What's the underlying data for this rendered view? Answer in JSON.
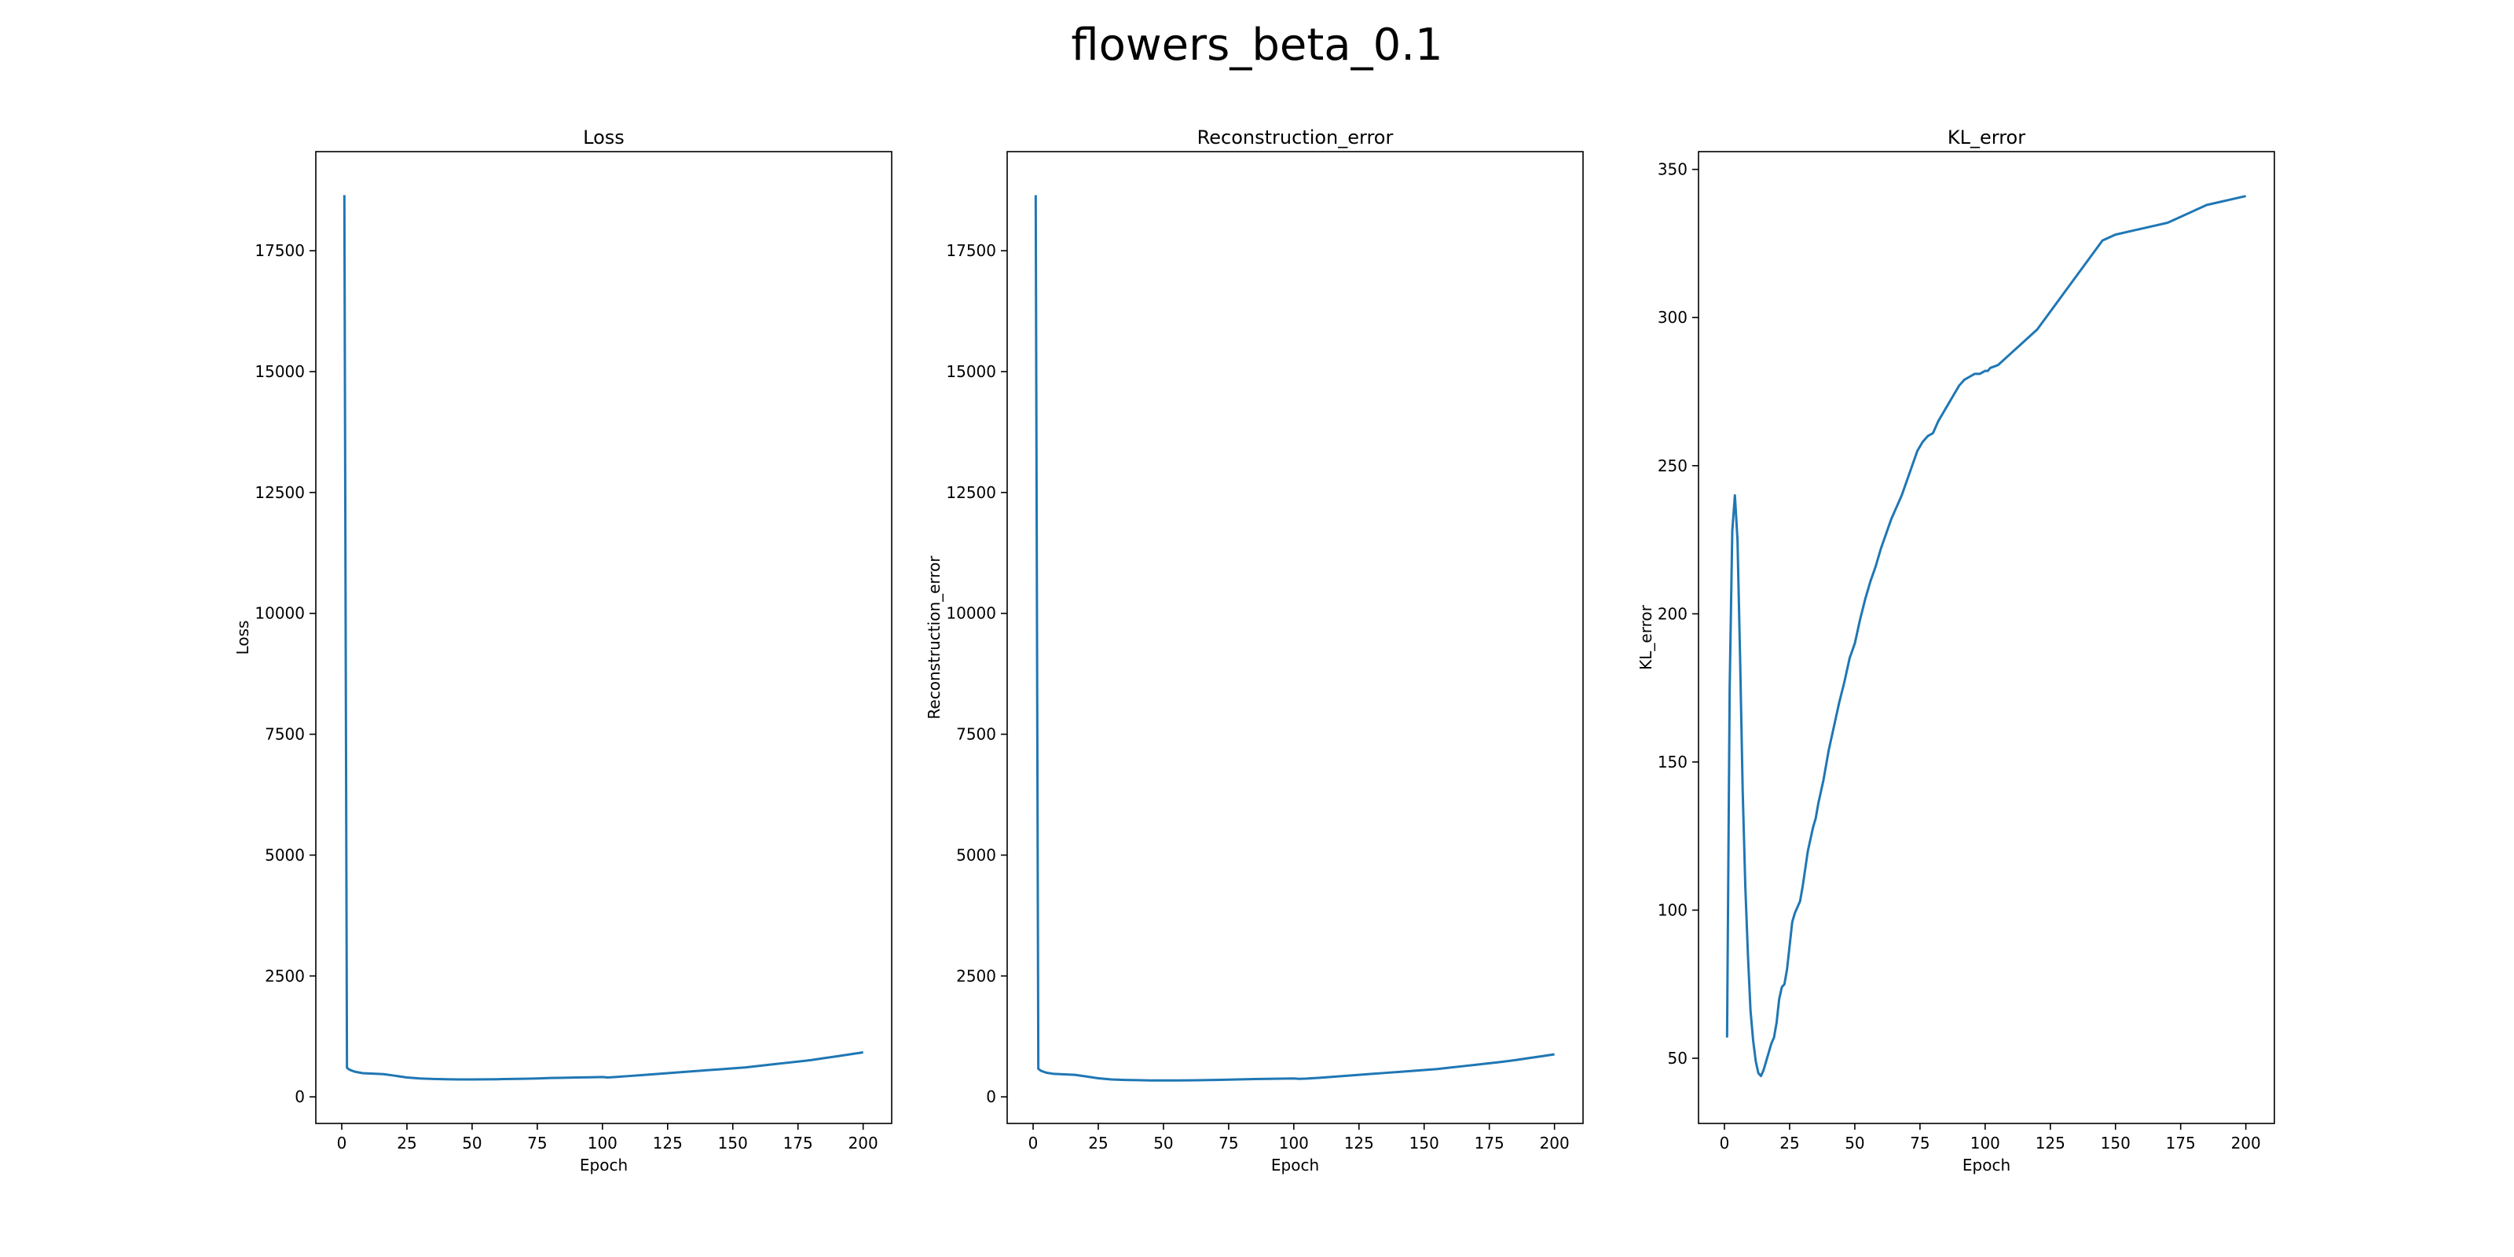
{
  "figure": {
    "suptitle": "flowers_beta_0.1"
  },
  "colors": {
    "line": "#1f77b4",
    "axes": "#000000",
    "background": "#ffffff"
  },
  "chart_data": [
    {
      "type": "line",
      "title": "Loss",
      "xlabel": "Epoch",
      "ylabel": "Loss",
      "xlim": [
        -9.95,
        210.95
      ],
      "ylim": [
        -550,
        19550
      ],
      "xticks": [
        0,
        25,
        50,
        75,
        100,
        125,
        150,
        175,
        200
      ],
      "yticks": [
        0,
        2500,
        5000,
        7500,
        10000,
        12500,
        15000,
        17500
      ],
      "grid": false,
      "legend": "none",
      "series": [
        {
          "x": [
            1,
            2,
            3,
            5,
            8,
            12,
            16,
            20,
            25,
            30,
            35,
            40,
            45,
            50,
            55,
            60,
            65,
            70,
            75,
            80,
            85,
            90,
            95,
            100,
            102,
            105,
            110,
            115,
            120,
            125,
            130,
            135,
            140,
            145,
            150,
            155,
            160,
            165,
            170,
            175,
            180,
            185,
            190,
            195,
            200
          ],
          "y": [
            18650,
            600,
            560,
            520,
            490,
            480,
            470,
            440,
            400,
            380,
            370,
            365,
            360,
            360,
            362,
            365,
            370,
            375,
            380,
            390,
            395,
            400,
            405,
            410,
            400,
            410,
            430,
            450,
            470,
            490,
            510,
            530,
            550,
            570,
            590,
            610,
            640,
            670,
            700,
            730,
            760,
            800,
            840,
            880,
            920
          ]
        }
      ]
    },
    {
      "type": "line",
      "title": "Reconstruction_error",
      "xlabel": "Epoch",
      "ylabel": "Reconstruction_error",
      "xlim": [
        -9.95,
        210.95
      ],
      "ylim": [
        -550,
        19550
      ],
      "xticks": [
        0,
        25,
        50,
        75,
        100,
        125,
        150,
        175,
        200
      ],
      "yticks": [
        0,
        2500,
        5000,
        7500,
        10000,
        12500,
        15000,
        17500
      ],
      "grid": false,
      "legend": "none",
      "series": [
        {
          "x": [
            1,
            2,
            3,
            5,
            8,
            12,
            16,
            20,
            25,
            30,
            35,
            40,
            45,
            50,
            55,
            60,
            65,
            70,
            75,
            80,
            85,
            90,
            95,
            100,
            102,
            105,
            110,
            115,
            120,
            125,
            130,
            135,
            140,
            145,
            150,
            155,
            160,
            165,
            170,
            175,
            180,
            185,
            190,
            195,
            200
          ],
          "y": [
            18650,
            580,
            540,
            500,
            475,
            465,
            455,
            425,
            385,
            360,
            350,
            345,
            340,
            340,
            340,
            342,
            345,
            350,
            355,
            362,
            368,
            372,
            377,
            380,
            372,
            378,
            395,
            415,
            435,
            455,
            475,
            495,
            515,
            535,
            555,
            575,
            605,
            635,
            665,
            695,
            725,
            760,
            800,
            840,
            880
          ]
        }
      ]
    },
    {
      "type": "line",
      "title": "KL_error",
      "xlabel": "Epoch",
      "ylabel": "KL_error",
      "xlim": [
        -9.95,
        210.95
      ],
      "ylim": [
        28,
        356
      ],
      "xticks": [
        0,
        25,
        50,
        75,
        100,
        125,
        150,
        175,
        200
      ],
      "yticks": [
        50,
        100,
        150,
        200,
        250,
        300,
        350
      ],
      "grid": false,
      "legend": "none",
      "series": [
        {
          "x": [
            1,
            2,
            3,
            4,
            5,
            6,
            7,
            8,
            9,
            10,
            11,
            12,
            13,
            14,
            15,
            16,
            17,
            18,
            19,
            20,
            21,
            22,
            23,
            24,
            25,
            26,
            27,
            28,
            29,
            30,
            31,
            32,
            33,
            34,
            35,
            36,
            38,
            40,
            42,
            44,
            46,
            48,
            50,
            52,
            54,
            56,
            58,
            60,
            62,
            64,
            66,
            68,
            70,
            72,
            74,
            76,
            78,
            80,
            82,
            84,
            86,
            88,
            90,
            92,
            94,
            96,
            98,
            100,
            101,
            102,
            105,
            110,
            115,
            120,
            125,
            130,
            135,
            140,
            145,
            150,
            155,
            160,
            165,
            170,
            175,
            180,
            185,
            190,
            195,
            200
          ],
          "y": [
            57,
            175,
            228,
            240,
            225,
            185,
            140,
            108,
            85,
            66,
            56,
            49,
            45,
            44,
            46,
            49,
            52,
            55,
            57,
            62,
            70,
            74,
            75,
            80,
            88,
            96,
            99,
            101,
            103,
            108,
            114,
            120,
            124,
            128,
            131,
            136,
            144,
            154,
            162,
            170,
            177,
            185,
            190,
            198,
            205,
            211,
            216,
            222,
            227,
            232,
            236,
            240,
            245,
            250,
            255,
            258,
            260,
            261,
            265,
            268,
            271,
            274,
            277,
            279,
            280,
            281,
            281,
            282,
            282,
            283,
            284,
            288,
            292,
            296,
            302,
            308,
            314,
            320,
            326,
            328,
            329,
            330,
            331,
            332,
            334,
            336,
            338,
            339,
            340,
            341
          ]
        }
      ]
    }
  ]
}
